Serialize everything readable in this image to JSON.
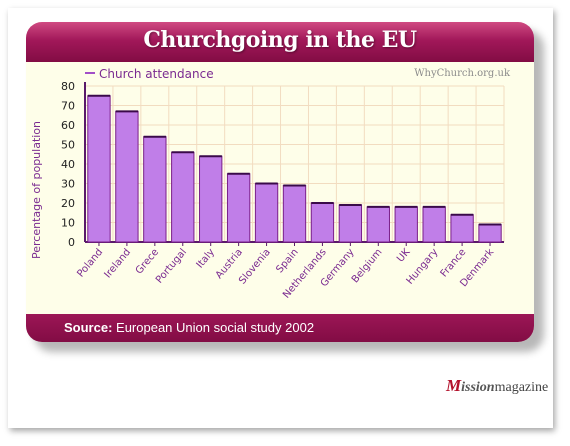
{
  "title": "Churchgoing in the EU",
  "watermark": "WhyChurch.org.uk",
  "source_label": "Source:",
  "source_text": "European Union social study 2002",
  "brand": {
    "prefix": "M",
    "mid": "ission",
    "suffix": "magazine"
  },
  "colors": {
    "bar": "#c07ee8",
    "bar_stroke": "#7a1f8a",
    "accent": "#a2185a",
    "plot_bg": "#fefee9",
    "grid": "#f2dcc0",
    "text": "#7a2a90"
  },
  "chart_data": {
    "type": "bar",
    "title": "Churchgoing in the EU",
    "xlabel": "",
    "ylabel": "Percentage of population",
    "ylim": [
      0,
      80
    ],
    "yticks": [
      0,
      10,
      20,
      30,
      40,
      50,
      60,
      70,
      80
    ],
    "grid": true,
    "legend_position": "top-left",
    "categories": [
      "Poland",
      "Ireland",
      "Grece",
      "Portugal",
      "Italy",
      "Austria",
      "Slovenia",
      "Spain",
      "Netherlands",
      "Germany",
      "Belgium",
      "UK",
      "Hungary",
      "France",
      "Denmark"
    ],
    "series": [
      {
        "name": "Church attendance",
        "values": [
          75,
          67,
          54,
          46,
          44,
          35,
          30,
          29,
          20,
          19,
          18,
          18,
          18,
          14,
          9
        ]
      }
    ]
  }
}
